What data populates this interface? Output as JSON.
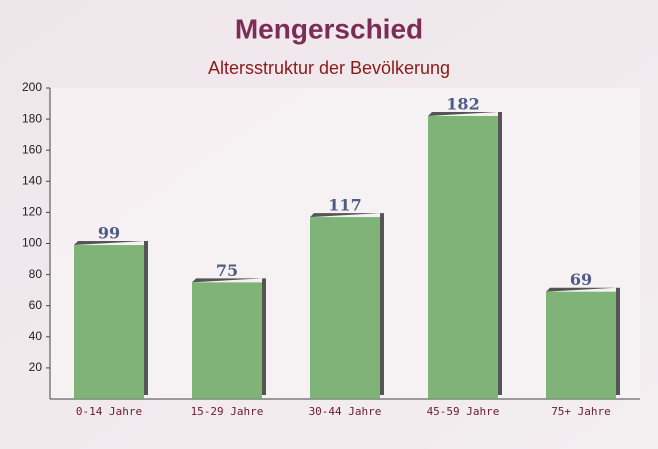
{
  "chart_data": {
    "type": "bar",
    "title": "Mengerschied",
    "subtitle": "Altersstruktur der Bevölkerung",
    "categories": [
      "0-14 Jahre",
      "15-29 Jahre",
      "30-44 Jahre",
      "45-59 Jahre",
      "75+ Jahre"
    ],
    "values": [
      99,
      75,
      117,
      182,
      69
    ],
    "color": "#6aa862",
    "ylim": [
      0,
      200
    ],
    "yticks": [
      20,
      40,
      60,
      80,
      100,
      120,
      140,
      160,
      180,
      200
    ],
    "grid": false
  }
}
